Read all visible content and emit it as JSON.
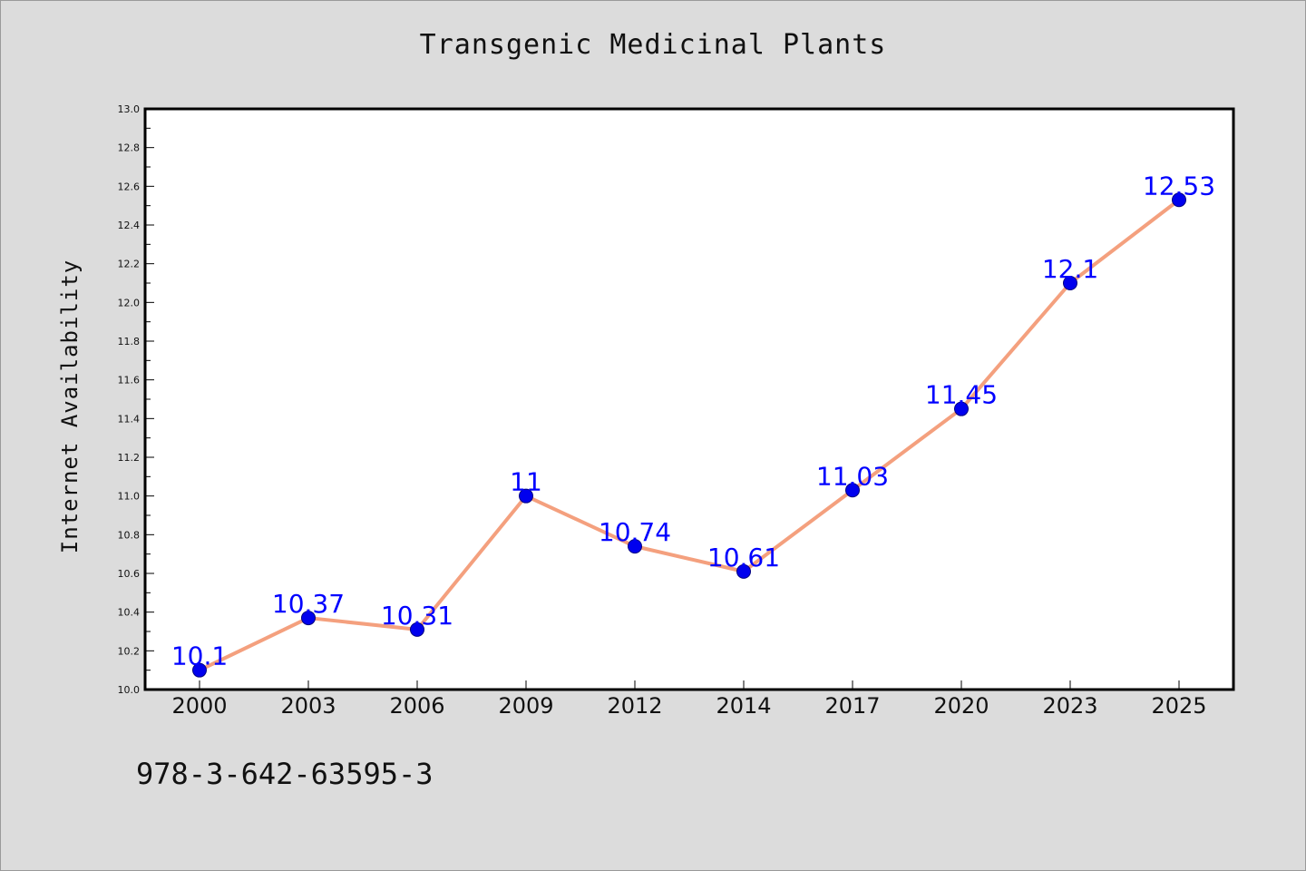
{
  "chart_data": {
    "type": "line",
    "title": "Transgenic Medicinal Plants",
    "xlabel": "",
    "ylabel": "Internet Availability",
    "categories": [
      "2000",
      "2003",
      "2006",
      "2009",
      "2012",
      "2014",
      "2017",
      "2020",
      "2023",
      "2025"
    ],
    "series": [
      {
        "values": [
          10.1,
          10.37,
          10.31,
          11,
          10.74,
          10.61,
          11.03,
          11.45,
          12.1,
          12.53
        ]
      }
    ],
    "data_labels": [
      "10.1",
      "10.37",
      "10.31",
      "11",
      "10.74",
      "10.61",
      "11.03",
      "11.45",
      "12.1",
      "12.53"
    ],
    "ylim": [
      10.0,
      13.0
    ],
    "yticks": [
      "10.0",
      "10.2",
      "10.4",
      "10.6",
      "10.8",
      "11.0",
      "11.2",
      "11.4",
      "11.6",
      "11.8",
      "12.0",
      "12.2",
      "12.4",
      "12.6",
      "12.8",
      "13.0"
    ],
    "grid": false,
    "legend": "none",
    "colors": {
      "line": "#f4a07e",
      "marker": "#0000ee",
      "marker_edge": "#000080",
      "data_label": "#0000ff",
      "plot_bg": "#ffffff",
      "page_bg": "#dcdcdc"
    }
  },
  "footer": {
    "code": "978-3-642-63595-3"
  }
}
